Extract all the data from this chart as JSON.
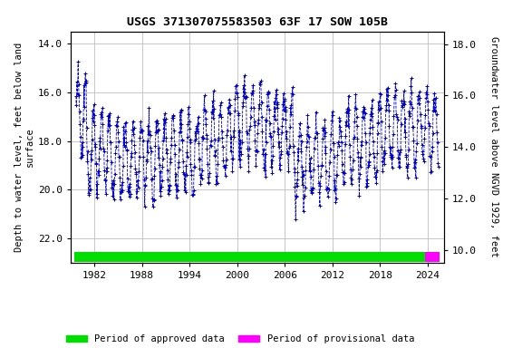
{
  "title": "USGS 371307075583503 63F 17 SOW 105B",
  "ylabel_left": "Depth to water level, feet below land\nsurface",
  "ylabel_right": "Groundwater level above NGVD 1929, feet",
  "ylim_left": [
    23.0,
    13.5
  ],
  "ylim_right": [
    9.5,
    18.5
  ],
  "yticks_left": [
    14.0,
    16.0,
    18.0,
    20.0,
    22.0
  ],
  "yticks_right": [
    10.0,
    12.0,
    14.0,
    16.0,
    18.0
  ],
  "xticks": [
    1982,
    1988,
    1994,
    2000,
    2006,
    2012,
    2018,
    2024
  ],
  "xlim": [
    1979.0,
    2026.0
  ],
  "data_color": "#0000cc",
  "approved_color": "#00dd00",
  "provisional_color": "#ff00ff",
  "approved_xstart": 1979.5,
  "approved_xend": 2023.7,
  "provisional_xstart": 2023.7,
  "provisional_xend": 2025.5,
  "background_color": "#ffffff",
  "grid_color": "#b0b0b0",
  "title_fontsize": 9.5,
  "axis_fontsize": 7.5,
  "tick_fontsize": 8,
  "font_family": "monospace"
}
